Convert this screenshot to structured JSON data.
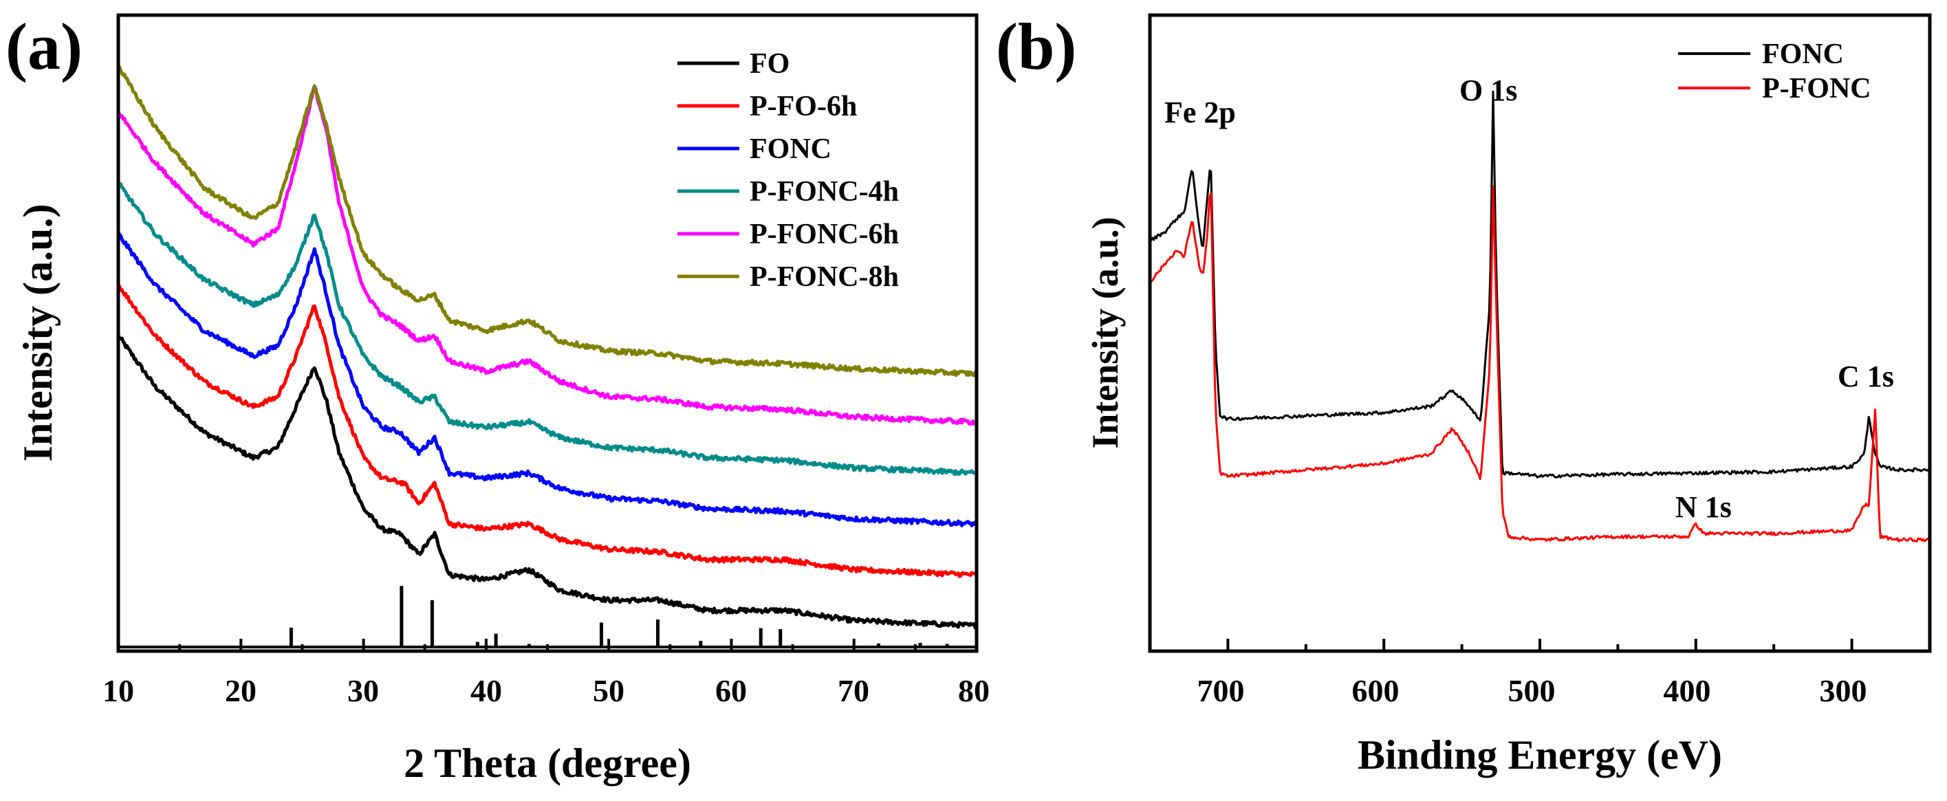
{
  "chart_data": [
    {
      "panel": "(a)",
      "type": "line",
      "xlabel": "2 Theta (degree)",
      "ylabel": "Intensity (a.u.)",
      "xlim": [
        10,
        80
      ],
      "ylim": [
        0,
        12.5
      ],
      "xticks": [
        10,
        20,
        30,
        40,
        50,
        60,
        70,
        80
      ],
      "yticks": [],
      "grid": false,
      "legend_position": "top-right",
      "series": [
        {
          "name": "FO",
          "color": "#000000",
          "offset": 0.0,
          "x": [
            10,
            13,
            17,
            21,
            23,
            24.5,
            26,
            27,
            28,
            30,
            31.5,
            33,
            34.5,
            35.8,
            37,
            40,
            43.5,
            46,
            50,
            54.2,
            58,
            64.3,
            70,
            75,
            80
          ],
          "y": [
            6.2,
            5.2,
            4.3,
            3.8,
            4.0,
            4.8,
            5.6,
            4.9,
            3.9,
            2.8,
            2.4,
            2.3,
            1.9,
            2.3,
            1.5,
            1.4,
            1.6,
            1.2,
            1.0,
            1.0,
            0.8,
            0.8,
            0.6,
            0.55,
            0.5
          ]
        },
        {
          "name": "P-FO-6h",
          "color": "#ff0000",
          "offset": 1.0,
          "x": [
            10,
            13,
            17,
            21,
            23,
            24.5,
            26,
            27,
            28,
            30,
            31.5,
            33.3,
            34.5,
            35.8,
            37,
            40,
            43.5,
            46,
            50,
            54.2,
            58,
            64.3,
            70,
            75,
            80
          ],
          "y": [
            6.2,
            5.2,
            4.3,
            3.8,
            4.0,
            4.8,
            5.8,
            5.0,
            4.0,
            2.8,
            2.4,
            2.3,
            1.9,
            2.3,
            1.5,
            1.4,
            1.5,
            1.2,
            1.0,
            0.95,
            0.8,
            0.8,
            0.6,
            0.55,
            0.5
          ]
        },
        {
          "name": "FONC",
          "color": "#0000ff",
          "offset": 2.0,
          "x": [
            10,
            13,
            17,
            21,
            23,
            24.5,
            26,
            27,
            28,
            30,
            31.5,
            33,
            34.5,
            35.8,
            37,
            40,
            43.5,
            46,
            50,
            54.2,
            58,
            64.3,
            70,
            75,
            80
          ],
          "y": [
            6.2,
            5.2,
            4.3,
            3.8,
            4.0,
            4.8,
            5.9,
            5.0,
            4.0,
            2.8,
            2.4,
            2.3,
            1.9,
            2.2,
            1.5,
            1.4,
            1.5,
            1.2,
            1.0,
            0.95,
            0.8,
            0.75,
            0.6,
            0.55,
            0.5
          ]
        },
        {
          "name": "P-FONC-4h",
          "color": "#008b8b",
          "offset": 3.0,
          "x": [
            10,
            13,
            17,
            21,
            23,
            24.5,
            26,
            27,
            28,
            30,
            31.5,
            33,
            34.5,
            35.8,
            37,
            40,
            43.5,
            46,
            50,
            54.2,
            58,
            64.3,
            70,
            75,
            80
          ],
          "y": [
            6.2,
            5.2,
            4.3,
            3.8,
            4.0,
            4.6,
            5.6,
            4.8,
            3.8,
            2.8,
            2.4,
            2.2,
            1.9,
            2.0,
            1.5,
            1.4,
            1.5,
            1.2,
            1.0,
            0.95,
            0.8,
            0.75,
            0.6,
            0.55,
            0.5
          ]
        },
        {
          "name": "P-FONC-6h",
          "color": "#ff00ff",
          "offset": 4.0,
          "x": [
            10,
            13,
            17,
            21,
            23,
            24.5,
            26,
            27,
            28,
            30,
            31.5,
            33,
            34.5,
            35.8,
            37,
            40,
            43.5,
            46,
            50,
            54.2,
            58,
            64.3,
            70,
            75,
            80
          ],
          "y": [
            6.6,
            5.6,
            4.6,
            4.0,
            4.3,
            5.6,
            7.1,
            6.2,
            4.8,
            3.1,
            2.6,
            2.4,
            2.1,
            2.2,
            1.7,
            1.5,
            1.7,
            1.3,
            1.0,
            0.95,
            0.8,
            0.75,
            0.6,
            0.55,
            0.5
          ]
        },
        {
          "name": "P-FONC-8h",
          "color": "#808000",
          "offset": 5.1,
          "x": [
            10,
            13,
            17,
            21,
            23,
            24.5,
            26,
            27,
            28,
            30,
            31.5,
            33,
            34.5,
            35.8,
            37,
            40,
            43.5,
            46,
            50,
            54.2,
            58,
            64.3,
            70,
            75,
            80
          ],
          "y": [
            6.4,
            5.2,
            4.0,
            3.4,
            3.7,
            4.8,
            6.0,
            5.2,
            4.2,
            2.7,
            2.3,
            2.0,
            1.8,
            1.9,
            1.4,
            1.2,
            1.4,
            1.0,
            0.8,
            0.75,
            0.6,
            0.55,
            0.45,
            0.4,
            0.35
          ]
        }
      ],
      "reference_peaks": {
        "x": [
          24.1,
          33.1,
          35.6,
          39.3,
          40.8,
          43.5,
          49.4,
          54.0,
          57.5,
          62.4,
          64.0,
          72.0,
          75.4,
          77.6
        ],
        "height": [
          0.38,
          1.2,
          0.92,
          0.1,
          0.26,
          0.06,
          0.48,
          0.54,
          0.12,
          0.37,
          0.35,
          0.07,
          0.08,
          0.06
        ]
      }
    },
    {
      "panel": "(b)",
      "type": "line",
      "xlabel": "Binding Energy (eV)",
      "ylabel": "Intensity (a.u.)",
      "xlim": [
        750,
        250
      ],
      "ylim": [
        0,
        10
      ],
      "xticks": [
        700,
        600,
        500,
        400,
        300
      ],
      "yticks": [],
      "grid": false,
      "legend_position": "top-right",
      "series": [
        {
          "name": "FONC",
          "color": "#000000",
          "x": [
            750,
            740,
            733,
            728,
            723,
            718,
            716,
            713,
            711,
            708,
            705,
            700,
            650,
            600,
            570,
            556,
            545,
            538,
            532,
            530,
            528,
            524,
            520,
            500,
            450,
            400,
            350,
            300,
            292,
            289,
            285,
            282,
            270,
            250
          ],
          "y": [
            6.45,
            6.6,
            6.8,
            6.9,
            7.6,
            6.6,
            6.3,
            7.2,
            7.7,
            4.8,
            3.7,
            3.65,
            3.7,
            3.75,
            3.85,
            4.1,
            3.85,
            3.6,
            5.5,
            8.8,
            6.0,
            2.8,
            2.8,
            2.75,
            2.78,
            2.8,
            2.82,
            2.9,
            3.1,
            3.7,
            3.1,
            2.9,
            2.85,
            2.85
          ]
        },
        {
          "name": "P-FONC",
          "color": "#ff0000",
          "x": [
            750,
            740,
            733,
            728,
            723,
            718,
            716,
            713,
            711,
            708,
            705,
            700,
            650,
            600,
            570,
            556,
            545,
            538,
            532,
            530,
            528,
            524,
            520,
            500,
            450,
            405,
            400,
            395,
            350,
            300,
            292,
            289,
            285,
            282,
            270,
            250
          ],
          "y": [
            5.8,
            6.1,
            6.3,
            6.2,
            6.8,
            6.0,
            5.9,
            6.6,
            7.4,
            3.8,
            2.8,
            2.75,
            2.85,
            2.95,
            3.1,
            3.5,
            3.1,
            2.7,
            4.5,
            7.3,
            5.5,
            2.2,
            1.8,
            1.75,
            1.8,
            1.8,
            2.0,
            1.85,
            1.85,
            1.9,
            2.3,
            2.3,
            3.8,
            1.8,
            1.75,
            1.75
          ]
        }
      ],
      "annotations": [
        "Fe 2p",
        "O 1s",
        "C 1s",
        "N 1s"
      ]
    }
  ],
  "panel_a": {
    "letter": "(a)",
    "xlabel": "2 Theta (degree)",
    "ylabel": "Intensity (a.u.)",
    "xtick_labels": [
      "10",
      "20",
      "30",
      "40",
      "50",
      "60",
      "70",
      "80"
    ],
    "legend": [
      "FO",
      "P-FO-6h",
      "FONC",
      "P-FONC-4h",
      "P-FONC-6h",
      "P-FONC-8h"
    ]
  },
  "panel_b": {
    "letter": "(b)",
    "xlabel": "Binding Energy (eV)",
    "ylabel": "Intensity (a.u.)",
    "xtick_labels": [
      "700",
      "600",
      "500",
      "400",
      "300"
    ],
    "legend": [
      "FONC",
      "P-FONC"
    ],
    "annotations": {
      "fe2p": "Fe 2p",
      "o1s": "O 1s",
      "c1s": "C 1s",
      "n1s": "N 1s"
    }
  }
}
